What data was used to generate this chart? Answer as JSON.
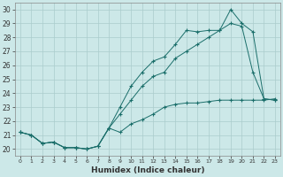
{
  "xlabel": "Humidex (Indice chaleur)",
  "bg_color": "#cce8e8",
  "grid_color": "#aacccc",
  "line_color": "#1a6e6a",
  "xlim": [
    -0.5,
    23.5
  ],
  "ylim": [
    19.5,
    30.5
  ],
  "xticks": [
    0,
    1,
    2,
    3,
    4,
    5,
    6,
    7,
    8,
    9,
    10,
    11,
    12,
    13,
    14,
    15,
    16,
    17,
    18,
    19,
    20,
    21,
    22,
    23
  ],
  "yticks": [
    20,
    21,
    22,
    23,
    24,
    25,
    26,
    27,
    28,
    29,
    30
  ],
  "line1_x": [
    0,
    1,
    2,
    3,
    4,
    5,
    6,
    7,
    8,
    9,
    10,
    11,
    12,
    13,
    14,
    15,
    16,
    17,
    18,
    19,
    20,
    21,
    22,
    23
  ],
  "line1_y": [
    21.2,
    21.0,
    20.4,
    20.5,
    20.1,
    20.1,
    20.0,
    20.2,
    21.5,
    21.2,
    21.8,
    22.1,
    22.5,
    23.0,
    23.2,
    23.3,
    23.3,
    23.4,
    23.5,
    23.5,
    23.5,
    23.5,
    23.5,
    23.6
  ],
  "line2_x": [
    0,
    1,
    2,
    3,
    4,
    5,
    6,
    7,
    8,
    9,
    10,
    11,
    12,
    13,
    14,
    15,
    16,
    17,
    18,
    19,
    20,
    21,
    22,
    23
  ],
  "line2_y": [
    21.2,
    21.0,
    20.4,
    20.5,
    20.1,
    20.1,
    20.0,
    20.2,
    21.5,
    22.5,
    23.5,
    24.5,
    25.2,
    25.5,
    26.5,
    27.0,
    27.5,
    28.0,
    28.5,
    29.0,
    28.8,
    25.5,
    23.6,
    23.5
  ],
  "line3_x": [
    0,
    1,
    2,
    3,
    4,
    5,
    6,
    7,
    8,
    9,
    10,
    11,
    12,
    13,
    14,
    15,
    16,
    17,
    18,
    19,
    20,
    21,
    22,
    23
  ],
  "line3_y": [
    21.2,
    21.0,
    20.4,
    20.5,
    20.1,
    20.1,
    20.0,
    20.2,
    21.5,
    23.0,
    24.5,
    25.5,
    26.3,
    26.6,
    27.5,
    28.5,
    28.4,
    28.5,
    28.5,
    30.0,
    29.0,
    28.4,
    23.6,
    23.5
  ]
}
